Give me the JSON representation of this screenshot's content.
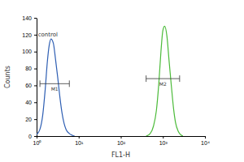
{
  "chart_data": {
    "type": "line",
    "log": "x",
    "x_label": "FL1-H",
    "y_label": "Counts",
    "xlim": [
      1,
      10000
    ],
    "ylim": [
      0,
      140
    ],
    "xticks": [
      {
        "value": 1,
        "label": "10⁰"
      },
      {
        "value": 10,
        "label": "10¹"
      },
      {
        "value": 100,
        "label": "10²"
      },
      {
        "value": 1000,
        "label": "10³"
      },
      {
        "value": 10000,
        "label": "10⁴"
      }
    ],
    "yticks": [
      0,
      20,
      40,
      60,
      80,
      100,
      120,
      140
    ],
    "series": [
      {
        "name": "control",
        "color": "#2f5fb3",
        "x": [
          1,
          1.2,
          1.4,
          1.6,
          1.8,
          2.0,
          2.2,
          2.5,
          2.8,
          3.2,
          3.6,
          4.0,
          4.5,
          5.0,
          6.0,
          7.0,
          8.0
        ],
        "values": [
          2,
          8,
          25,
          55,
          88,
          108,
          115,
          110,
          92,
          68,
          45,
          28,
          15,
          8,
          3,
          1,
          0
        ]
      },
      {
        "color": "#4cbb3a",
        "x": [
          400,
          500,
          600,
          700,
          800,
          900,
          1000,
          1100,
          1250,
          1400,
          1600,
          1800,
          2000,
          2300,
          2600,
          3000
        ],
        "values": [
          0,
          3,
          12,
          30,
          62,
          100,
          125,
          130,
          118,
          90,
          58,
          32,
          16,
          6,
          2,
          0
        ]
      }
    ],
    "annotations": [
      {
        "text": "M1",
        "x": [
          1.2,
          6
        ],
        "y": 62
      },
      {
        "text": "M2",
        "x": [
          400,
          2500
        ],
        "y": 68
      }
    ]
  }
}
